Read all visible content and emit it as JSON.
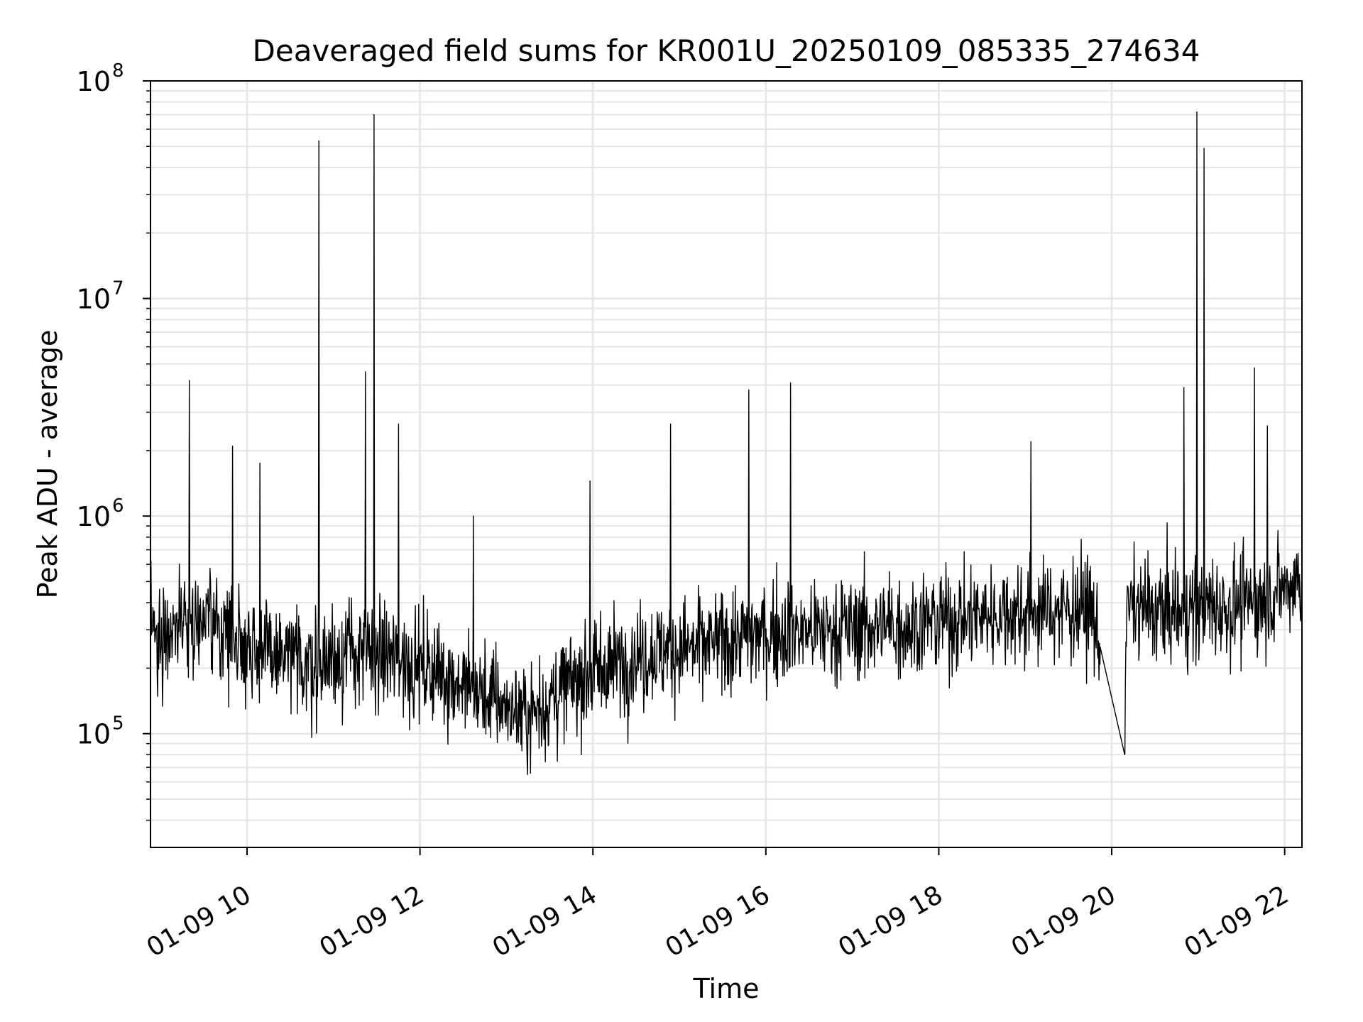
{
  "chart_data": {
    "type": "line",
    "title": "Deaveraged field sums for KR001U_20250109_085335_274634",
    "xlabel": "Time",
    "ylabel": "Peak ADU - average",
    "x_range": [
      "2025-01-09 08:53",
      "2025-01-09 22:12"
    ],
    "y_scale": "log",
    "ylim": [
      30000,
      100000000
    ],
    "grid": "major and minor",
    "x_ticks": [
      "01-09 10",
      "01-09 12",
      "01-09 14",
      "01-09 16",
      "01-09 18",
      "01-09 20",
      "01-09 22"
    ],
    "y_ticks": [
      100000,
      1000000,
      10000000,
      100000000
    ],
    "y_tick_labels": [
      {
        "base": "10",
        "exp": "5"
      },
      {
        "base": "10",
        "exp": "6"
      },
      {
        "base": "10",
        "exp": "7"
      },
      {
        "base": "10",
        "exp": "8"
      }
    ],
    "line_color": "#000000",
    "grid_color": "#e5e5e5",
    "series": [
      {
        "values": [
          {
            "x": "2025-01-09 08:53",
            "y": 300000
          },
          {
            "x": "2025-01-09 09:00",
            "y": 280000
          },
          {
            "x": "2025-01-09 09:18",
            "y": 350000
          },
          {
            "x": "2025-01-09 09:45",
            "y": 300000
          },
          {
            "x": "2025-01-09 10:15",
            "y": 230000
          },
          {
            "x": "2025-01-09 10:45",
            "y": 210000
          },
          {
            "x": "2025-01-09 11:15",
            "y": 240000
          },
          {
            "x": "2025-01-09 11:45",
            "y": 220000
          },
          {
            "x": "2025-01-09 12:15",
            "y": 190000
          },
          {
            "x": "2025-01-09 12:45",
            "y": 150000
          },
          {
            "x": "2025-01-09 13:15",
            "y": 120000
          },
          {
            "x": "2025-01-09 13:45",
            "y": 170000
          },
          {
            "x": "2025-01-09 14:15",
            "y": 210000
          },
          {
            "x": "2025-01-09 14:45",
            "y": 240000
          },
          {
            "x": "2025-01-09 15:15",
            "y": 250000
          },
          {
            "x": "2025-01-09 15:45",
            "y": 280000
          },
          {
            "x": "2025-01-09 16:15",
            "y": 300000
          },
          {
            "x": "2025-01-09 16:45",
            "y": 300000
          },
          {
            "x": "2025-01-09 17:15",
            "y": 310000
          },
          {
            "x": "2025-01-09 17:45",
            "y": 320000
          },
          {
            "x": "2025-01-09 18:15",
            "y": 340000
          },
          {
            "x": "2025-01-09 18:45",
            "y": 360000
          },
          {
            "x": "2025-01-09 19:15",
            "y": 370000
          },
          {
            "x": "2025-01-09 19:45",
            "y": 380000
          },
          {
            "x": "2025-01-09 19:52",
            "y": 250000
          },
          {
            "x": "2025-01-09 20:09",
            "y": 80000
          },
          {
            "x": "2025-01-09 20:10",
            "y": 380000
          },
          {
            "x": "2025-01-09 20:40",
            "y": 360000
          },
          {
            "x": "2025-01-09 21:10",
            "y": 380000
          },
          {
            "x": "2025-01-09 21:40",
            "y": 400000
          },
          {
            "x": "2025-01-09 22:12",
            "y": 520000
          }
        ]
      }
    ],
    "annotations_peaks": [
      {
        "x": "2025-01-09 09:20",
        "y": 4200000
      },
      {
        "x": "2025-01-09 09:50",
        "y": 2100000
      },
      {
        "x": "2025-01-09 10:09",
        "y": 1750000
      },
      {
        "x": "2025-01-09 10:50",
        "y": 53000000
      },
      {
        "x": "2025-01-09 11:22",
        "y": 4600000
      },
      {
        "x": "2025-01-09 11:28",
        "y": 70000000
      },
      {
        "x": "2025-01-09 11:45",
        "y": 2650000
      },
      {
        "x": "2025-01-09 12:37",
        "y": 1000000
      },
      {
        "x": "2025-01-09 13:58",
        "y": 1450000
      },
      {
        "x": "2025-01-09 14:54",
        "y": 2650000
      },
      {
        "x": "2025-01-09 15:48",
        "y": 3800000
      },
      {
        "x": "2025-01-09 16:17",
        "y": 4100000
      },
      {
        "x": "2025-01-09 19:04",
        "y": 2200000
      },
      {
        "x": "2025-01-09 20:50",
        "y": 3900000
      },
      {
        "x": "2025-01-09 20:59",
        "y": 72000000
      },
      {
        "x": "2025-01-09 21:04",
        "y": 49000000
      },
      {
        "x": "2025-01-09 21:39",
        "y": 4800000
      },
      {
        "x": "2025-01-09 21:48",
        "y": 2600000
      }
    ]
  }
}
